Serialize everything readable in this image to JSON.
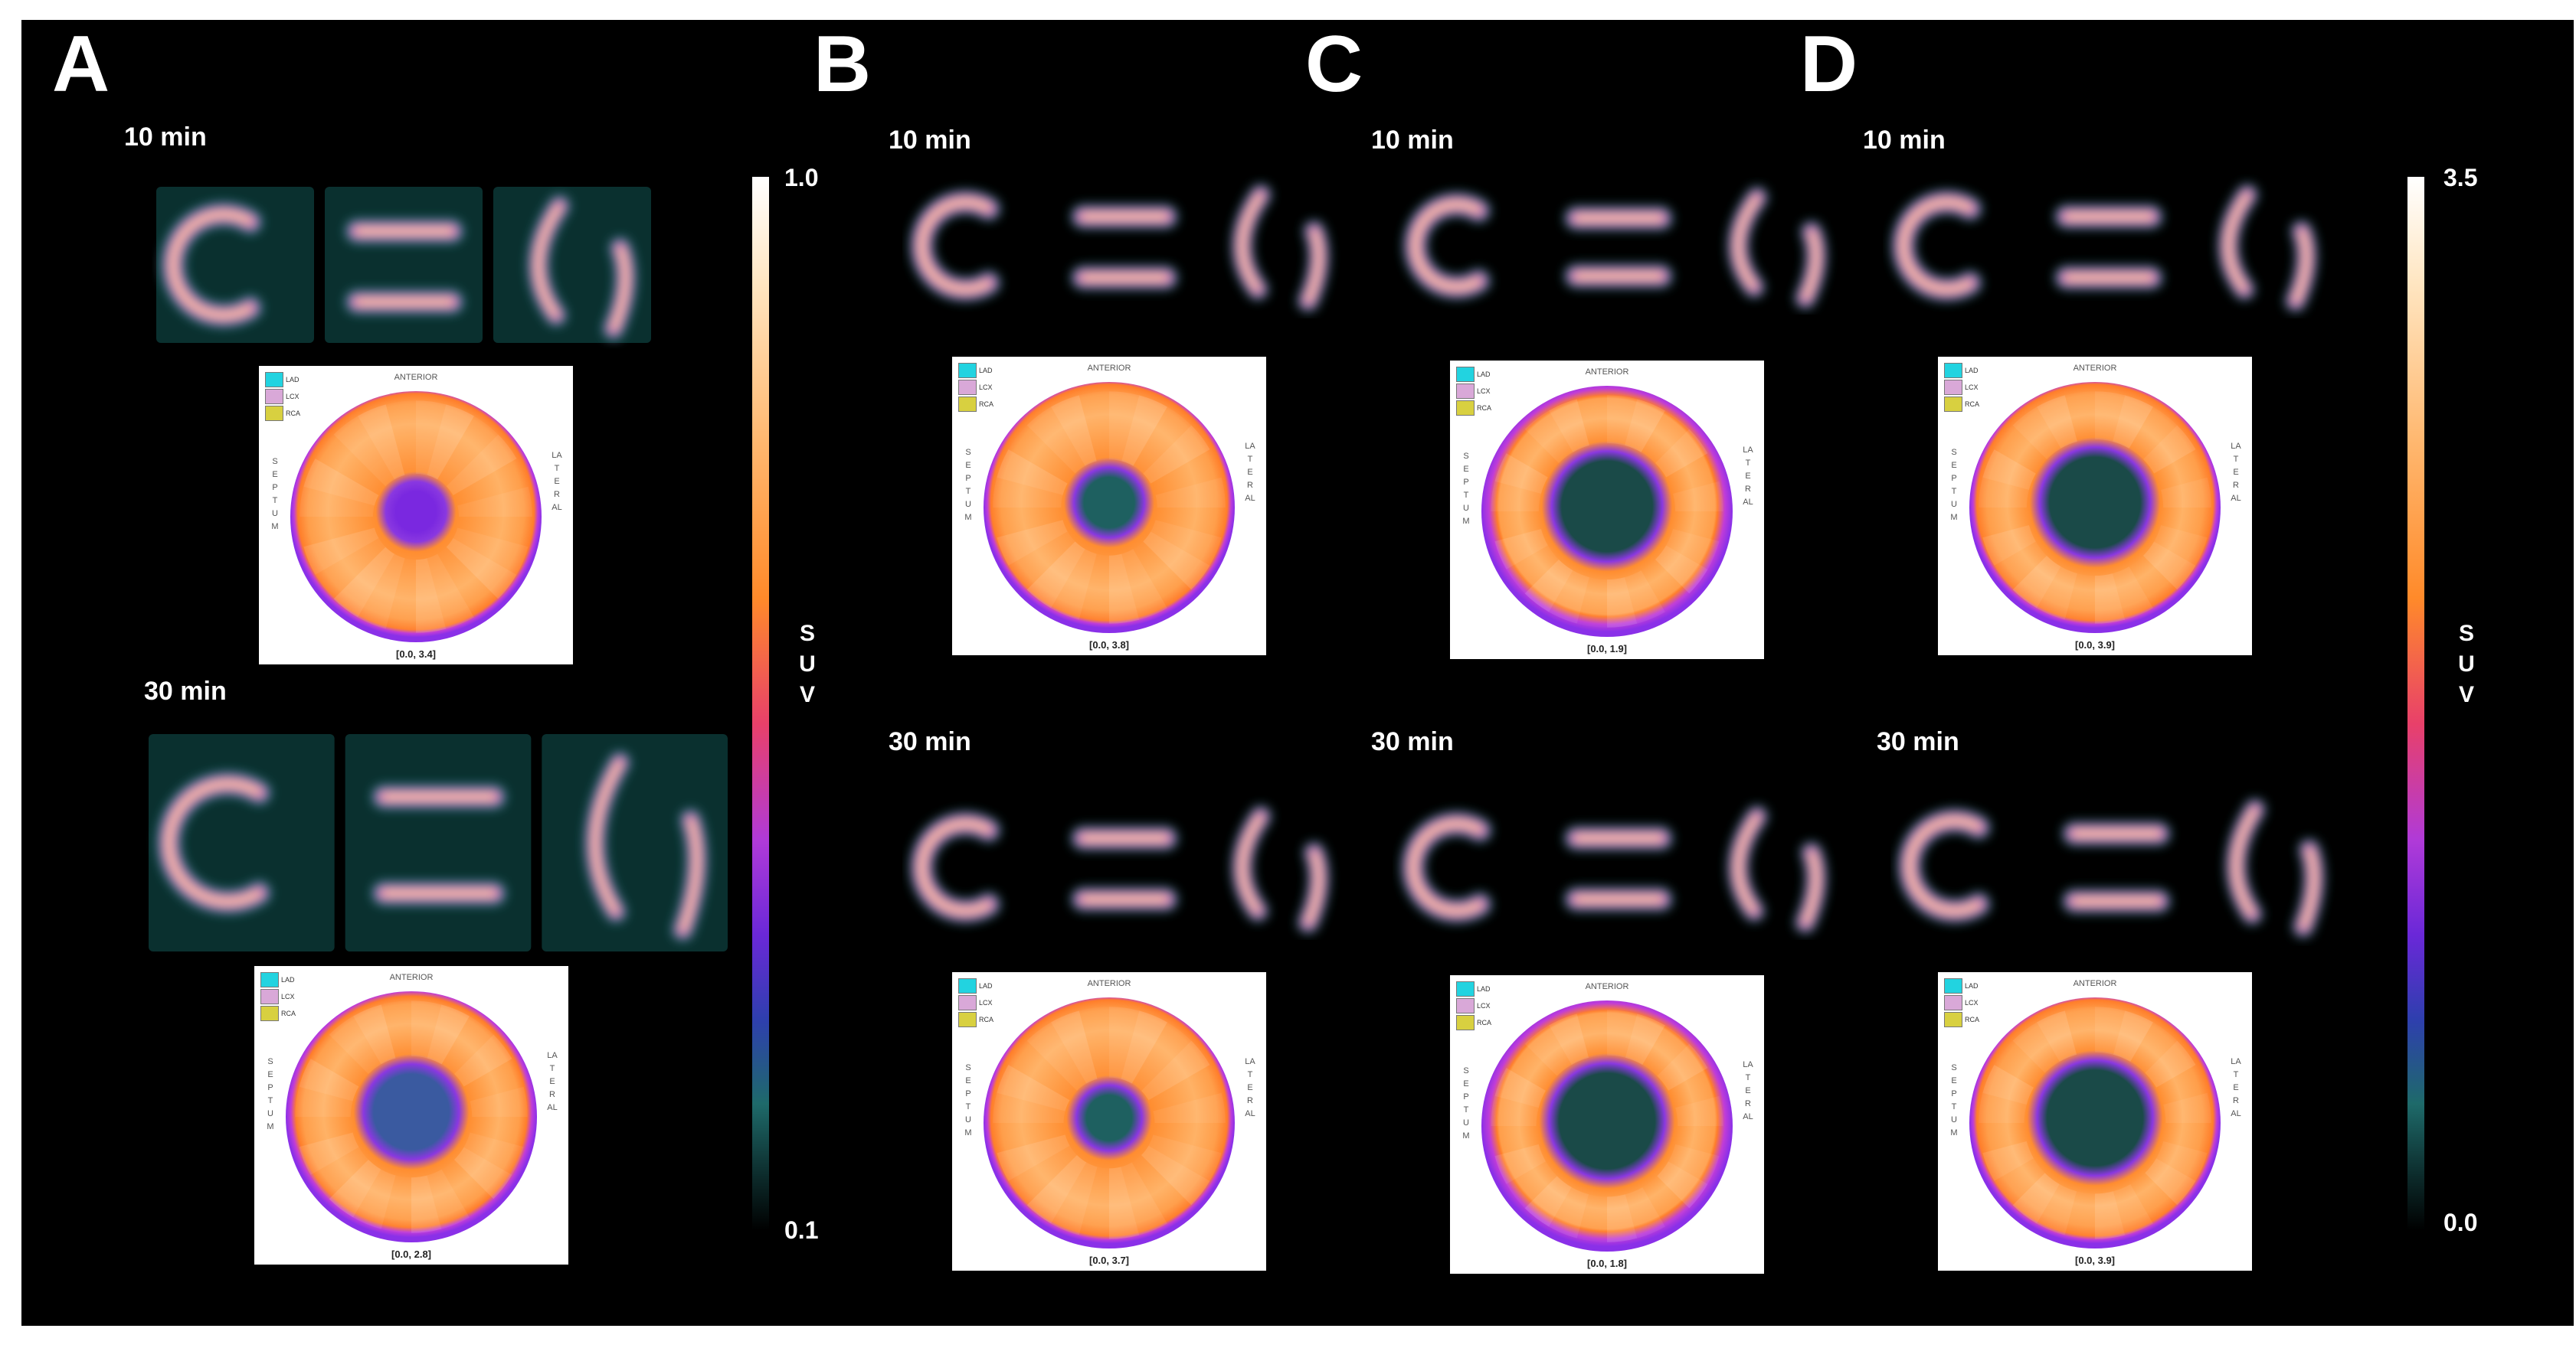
{
  "panels": [
    "A",
    "B",
    "C",
    "D"
  ],
  "time_labels": {
    "early": "10 min",
    "late": "30 min"
  },
  "legend": {
    "lad": "LAD",
    "lcx": "LCX",
    "rca": "RCA"
  },
  "polar": {
    "anterior": "ANTERIOR",
    "septum": "SEPTUM",
    "lateral": "LATERAL"
  },
  "ranges": {
    "a10": "[0.0, 3.4]",
    "a30": "[0.0, 2.8]",
    "b10": "[0.0, 3.8]",
    "b30": "[0.0, 3.7]",
    "c10": "[0.0, 1.9]",
    "c30": "[0.0, 1.8]",
    "d10": "[0.0, 3.9]",
    "d30": "[0.0, 3.9]"
  },
  "scales": {
    "left": {
      "max": "1.0",
      "min": "0.1",
      "label": [
        "S",
        "U",
        "V"
      ]
    },
    "right": {
      "max": "3.5",
      "min": "0.0",
      "label": [
        "S",
        "U",
        "V"
      ]
    }
  },
  "colors": {
    "background": "#000000",
    "text": "#ffffff",
    "lad": "#22d3e0",
    "lcx": "#d9a8d8",
    "rca": "#d8d040"
  }
}
